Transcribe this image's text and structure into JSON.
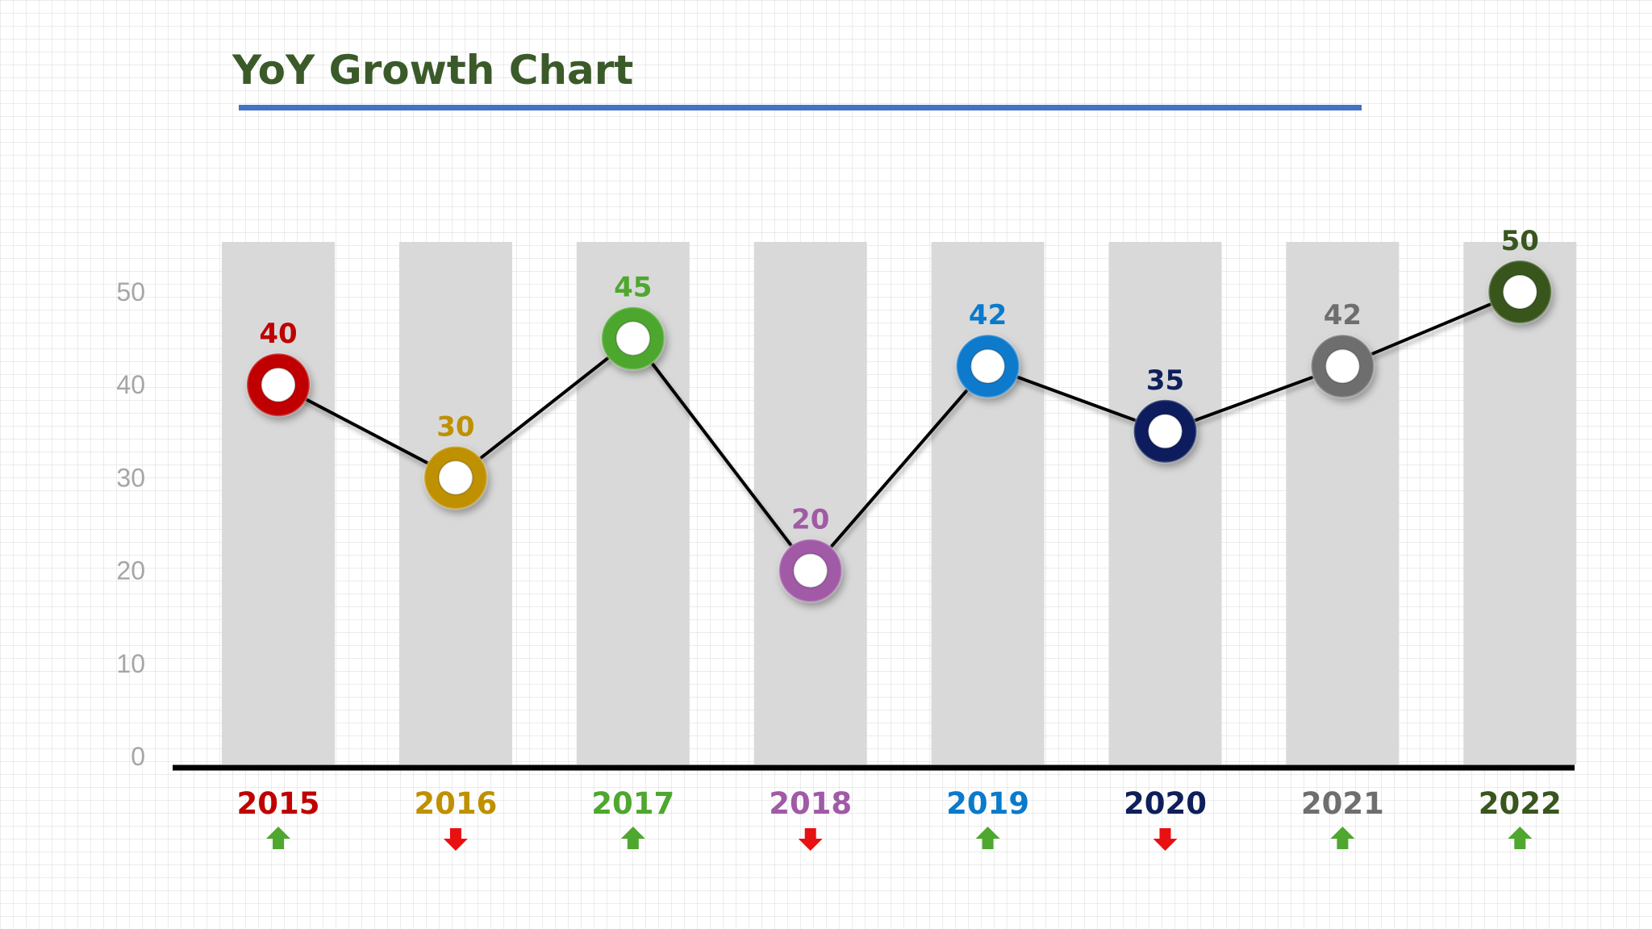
{
  "chart_data": {
    "type": "line",
    "title": "YoY Growth Chart",
    "categories": [
      "2015",
      "2016",
      "2017",
      "2018",
      "2019",
      "2020",
      "2021",
      "2022"
    ],
    "values": [
      40,
      30,
      45,
      20,
      42,
      35,
      42,
      50
    ],
    "data_labels": [
      "40",
      "30",
      "45",
      "20",
      "42",
      "35",
      "42",
      "50"
    ],
    "point_colors": [
      "#c00000",
      "#bf9000",
      "#4ea72e",
      "#a05aa6",
      "#0a7acc",
      "#0e1f5b",
      "#6e6e6e",
      "#38561d"
    ],
    "trend": [
      "up",
      "down",
      "up",
      "down",
      "up",
      "down",
      "up",
      "up"
    ],
    "trend_colors": {
      "up": "#4ea72e",
      "down": "#e81010"
    },
    "yticks": [
      "0",
      "10",
      "20",
      "30",
      "40",
      "50"
    ],
    "ylim": [
      0,
      50
    ],
    "background_columns": true,
    "column_color": "#d9d9d9",
    "grid": false,
    "line_color": "#000000",
    "title_color": "#3b5a2a",
    "title_rule_color": "#4472c4"
  }
}
